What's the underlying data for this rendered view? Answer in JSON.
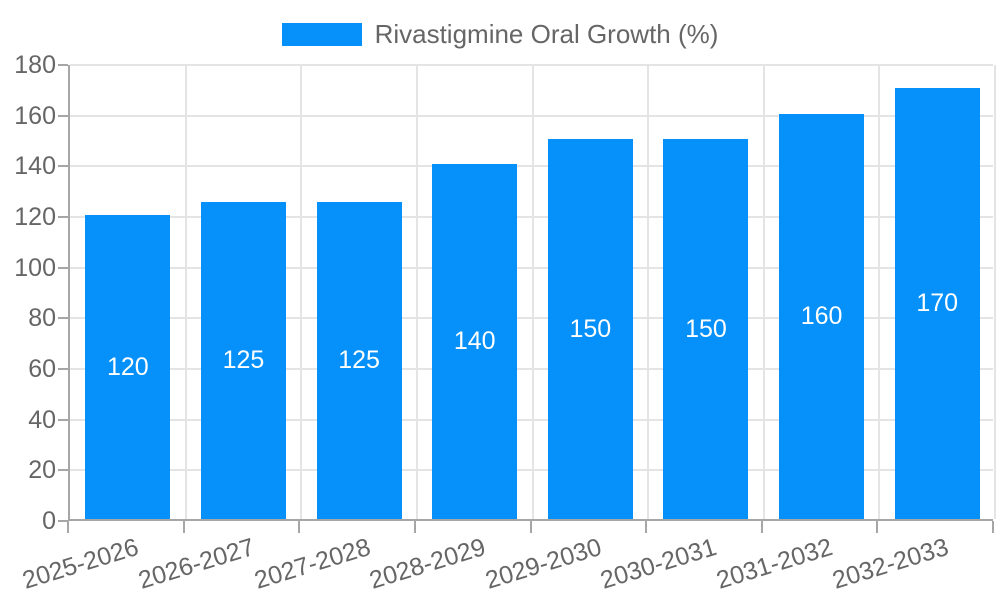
{
  "legend": {
    "label": "Rivastigmine Oral Growth (%)"
  },
  "colors": {
    "bar": "#0590fa",
    "axis": "#a6a6a6",
    "grid": "#e4e4e4",
    "tick_text": "#666666",
    "bar_label": "#ffffff"
  },
  "chart_data": {
    "type": "bar",
    "title": "Rivastigmine Oral Growth (%)",
    "categories": [
      "2025-2026",
      "2026-2027",
      "2027-2028",
      "2028-2029",
      "2029-2030",
      "2030-2031",
      "2031-2032",
      "2032-2033"
    ],
    "values": [
      120,
      125,
      125,
      140,
      150,
      150,
      160,
      170
    ],
    "xlabel": "",
    "ylabel": "",
    "ylim": [
      0,
      180
    ],
    "ytick_step": 20,
    "grid": true,
    "legend_position": "top",
    "value_labels": "inside-center",
    "x_label_rotation_deg": -17
  }
}
